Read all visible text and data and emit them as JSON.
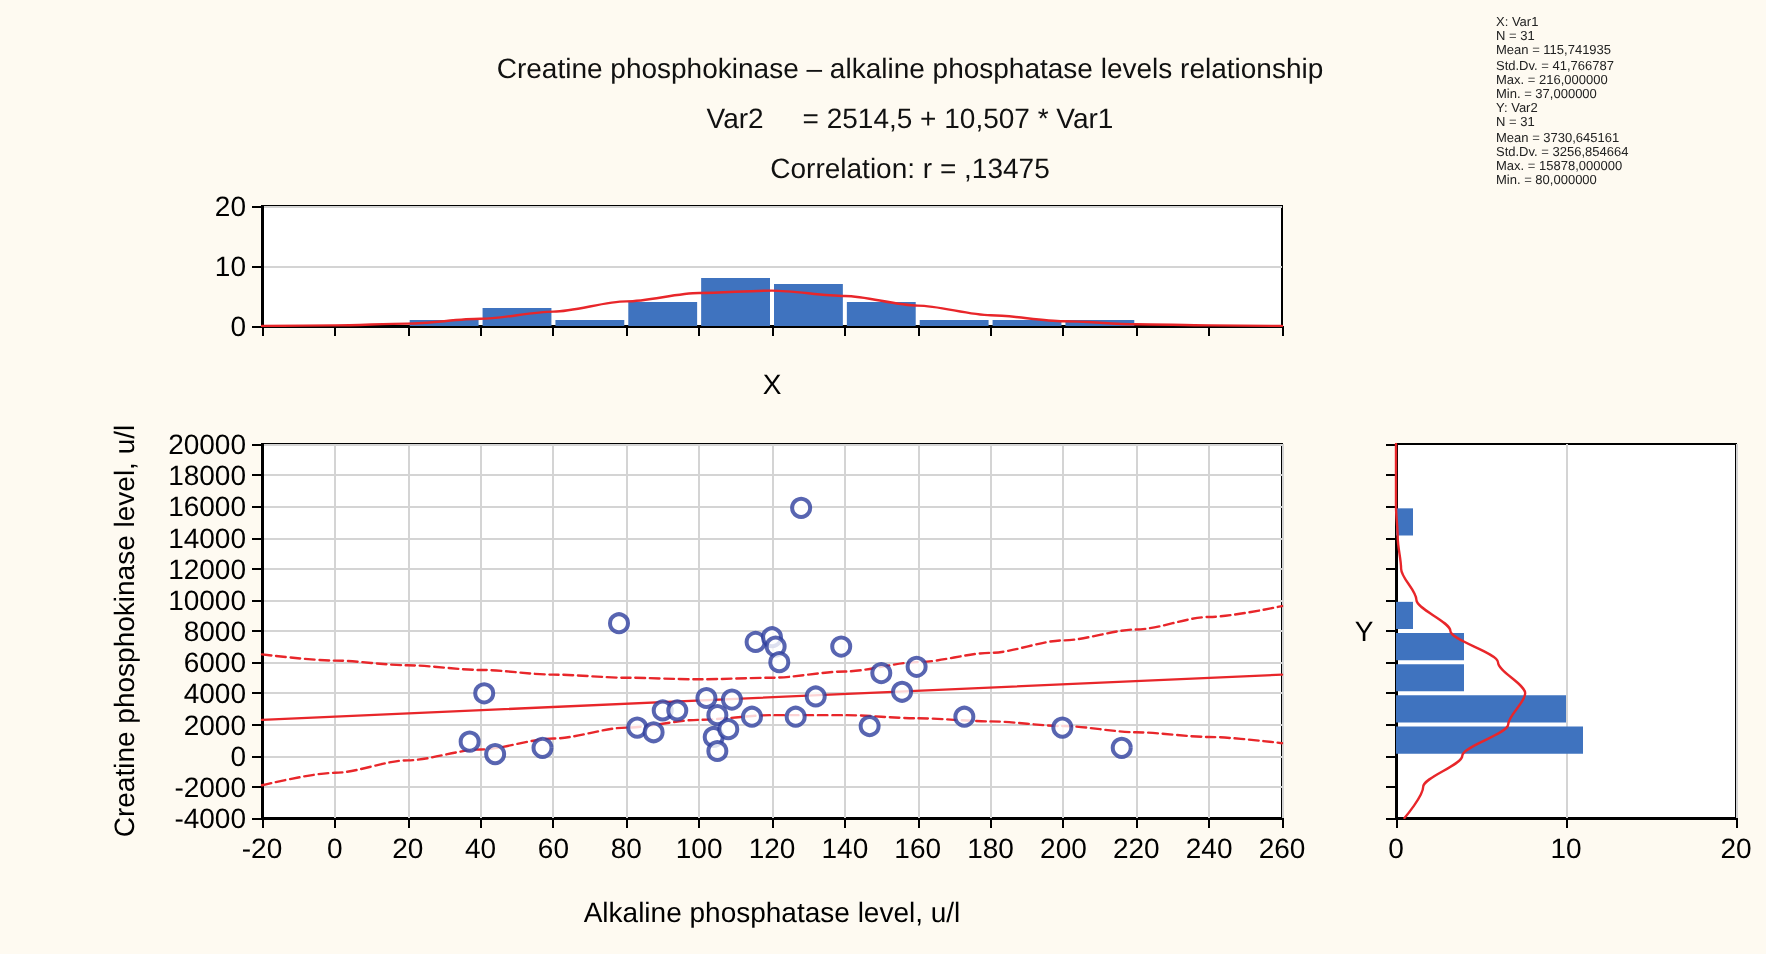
{
  "chart_data": [
    {
      "type": "histogram",
      "title": "Creatine phosphokinase – alkaline phosphatase levels relationship",
      "subtitle": "Var2     = 2514,5 + 10,507 * Var1",
      "annotations": [
        "Correlation: r = ,13475"
      ],
      "xlabel": "X",
      "xlim": [
        -20,
        260
      ],
      "xticks": [
        -20,
        0,
        20,
        40,
        60,
        80,
        100,
        120,
        140,
        160,
        180,
        200,
        220,
        240,
        260
      ],
      "ylim": [
        0,
        20
      ],
      "yticks": [
        0,
        10,
        20
      ],
      "tick_labels": "y",
      "grid": "y",
      "bins": [
        20,
        40,
        60,
        80,
        100,
        120,
        140,
        160,
        180,
        200,
        220
      ],
      "series": [
        {
          "type": "histogram",
          "color": "#3f73bf",
          "values": [
            1,
            3,
            1,
            4,
            8,
            7,
            4,
            1,
            1,
            1
          ]
        },
        {
          "type": "line",
          "color": "#e8262a",
          "x": [
            -20,
            0,
            20,
            40,
            60,
            80,
            100,
            120,
            140,
            160,
            180,
            200,
            220,
            240,
            260
          ],
          "values": [
            0.0,
            0.1,
            0.4,
            1.2,
            2.4,
            4.1,
            5.5,
            5.9,
            5.0,
            3.4,
            1.8,
            0.8,
            0.3,
            0.1,
            0.0
          ]
        }
      ]
    },
    {
      "type": "other",
      "annotations": [
        "X:  Var1",
        "N = 31",
        "Mean = 115,741935",
        "Std.Dv. = 41,766787",
        "Max. = 216,000000",
        "Min. = 37,000000",
        "Y:  Var2",
        "N = 31",
        "Mean = 3730,645161",
        "Std.Dv. = 3256,854664",
        "Max. = 15878,000000",
        "Min. = 80,000000"
      ]
    },
    {
      "type": "scatter",
      "xlabel": "Alkaline phosphatase level, u/l",
      "ylabel": "Creatine phosphokinase level, u/l",
      "xlim": [
        -20,
        260
      ],
      "xticks": [
        -20,
        0,
        20,
        40,
        60,
        80,
        100,
        120,
        140,
        160,
        180,
        200,
        220,
        240,
        260
      ],
      "ylim": [
        -4000,
        20000
      ],
      "yticks": [
        -4000,
        -2000,
        0,
        2000,
        4000,
        6000,
        8000,
        10000,
        12000,
        14000,
        16000,
        18000,
        20000
      ],
      "grid": true,
      "marker": "circle",
      "series": [
        {
          "type": "scatter",
          "color": "#2e3f9e",
          "x": [
            37,
            41,
            44,
            57,
            78,
            83,
            87.5,
            90,
            94,
            102,
            104,
            105,
            105,
            108,
            109,
            114.5,
            115.5,
            120,
            121,
            122,
            126.5,
            128,
            132,
            139,
            146.8,
            150,
            155.7,
            159.7,
            172.8,
            199.7,
            216
          ],
          "values": [
            900,
            4000,
            100,
            500,
            8500,
            1800,
            1500,
            2900,
            2900,
            3700,
            1200,
            2600,
            300,
            1700,
            3600,
            2500,
            7300,
            7600,
            7000,
            6000,
            2500,
            15900,
            3800,
            7000,
            1900,
            5300,
            4100,
            5700,
            2500,
            1800,
            500
          ]
        },
        {
          "type": "line",
          "color": "#e8262a",
          "line_style": "solid",
          "marker": "none",
          "x": [
            -20,
            260
          ],
          "values": [
            2300,
            5200
          ]
        },
        {
          "type": "line",
          "color": "#e8262a",
          "line_style": "dashed",
          "marker": "none",
          "x": [
            -20,
            0,
            20,
            40,
            60,
            80,
            100,
            120,
            140,
            160,
            180,
            200,
            220,
            240,
            260
          ],
          "values": [
            6500,
            6100,
            5800,
            5500,
            5200,
            5000,
            4900,
            5000,
            5400,
            6000,
            6600,
            7400,
            8100,
            8900,
            9600
          ]
        },
        {
          "type": "line",
          "color": "#e8262a",
          "line_style": "dashed",
          "marker": "none",
          "x": [
            -20,
            0,
            20,
            40,
            60,
            80,
            100,
            120,
            140,
            160,
            180,
            200,
            220,
            240,
            260
          ],
          "values": [
            -1900,
            -1100,
            -300,
            400,
            1100,
            1800,
            2300,
            2600,
            2600,
            2400,
            2200,
            1900,
            1500,
            1200,
            800
          ]
        }
      ]
    },
    {
      "type": "histogram",
      "orientation": "horizontal",
      "ylabel": "Y",
      "xlim": [
        0,
        20
      ],
      "xticks": [
        0,
        10,
        20
      ],
      "ylim": [
        -4000,
        20000
      ],
      "yticks": [
        -4000,
        -2000,
        0,
        2000,
        4000,
        6000,
        8000,
        10000,
        12000,
        14000,
        16000,
        18000,
        20000
      ],
      "tick_labels": "x",
      "grid": "x",
      "bins": [
        0,
        2000,
        4000,
        6000,
        8000,
        10000,
        12000,
        14000,
        16000
      ],
      "series": [
        {
          "type": "histogram",
          "color": "#3f73bf",
          "values": [
            11,
            10,
            4,
            4,
            1,
            0,
            0,
            1
          ]
        },
        {
          "type": "line",
          "color": "#e8262a",
          "x": [
            -4000,
            -2000,
            0,
            2000,
            4000,
            6000,
            8000,
            10000,
            12000,
            14000,
            16000,
            18000,
            20000
          ],
          "values": [
            0.5,
            1.6,
            3.9,
            6.6,
            7.6,
            6.0,
            3.2,
            1.2,
            0.3,
            0.1,
            0.0,
            0.0,
            0.0
          ]
        }
      ]
    }
  ]
}
